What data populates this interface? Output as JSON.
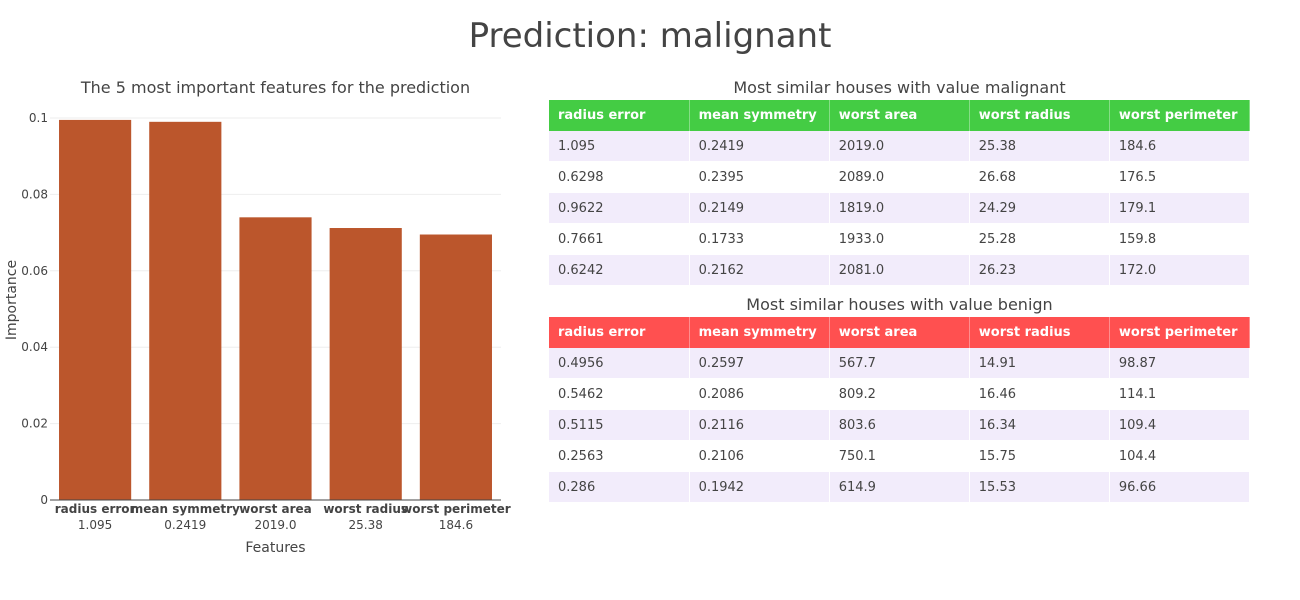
{
  "title": "Prediction: malignant",
  "chart_data": {
    "type": "bar",
    "title": "The 5 most important features for the prediction",
    "xlabel": "Features",
    "ylabel": "Importance",
    "categories": [
      "radius error",
      "mean symmetry",
      "worst area",
      "worst radius",
      "worst perimeter"
    ],
    "category_values": [
      "1.095",
      "0.2419",
      "2019.0",
      "25.38",
      "184.6"
    ],
    "values": [
      0.0995,
      0.099,
      0.074,
      0.0712,
      0.0695
    ],
    "ylim": [
      0,
      0.1
    ],
    "yticks": [
      0,
      0.02,
      0.04,
      0.06,
      0.08,
      0.1
    ],
    "ytick_labels": [
      "0",
      "0.02",
      "0.04",
      "0.06",
      "0.08",
      "0.1"
    ],
    "bar_color": "#bb562c",
    "grid": true
  },
  "tables": [
    {
      "title": "Most similar houses with value malignant",
      "header_color": "#44cc44",
      "columns": [
        "radius error",
        "mean symmetry",
        "worst area",
        "worst radius",
        "worst perimeter"
      ],
      "rows": [
        [
          "1.095",
          "0.2419",
          "2019.0",
          "25.38",
          "184.6"
        ],
        [
          "0.6298",
          "0.2395",
          "2089.0",
          "26.68",
          "176.5"
        ],
        [
          "0.9622",
          "0.2149",
          "1819.0",
          "24.29",
          "179.1"
        ],
        [
          "0.7661",
          "0.1733",
          "1933.0",
          "25.28",
          "159.8"
        ],
        [
          "0.6242",
          "0.2162",
          "2081.0",
          "26.23",
          "172.0"
        ]
      ]
    },
    {
      "title": "Most similar houses with value benign",
      "header_color": "#ff5050",
      "columns": [
        "radius error",
        "mean symmetry",
        "worst area",
        "worst radius",
        "worst perimeter"
      ],
      "rows": [
        [
          "0.4956",
          "0.2597",
          "567.7",
          "14.91",
          "98.87"
        ],
        [
          "0.5462",
          "0.2086",
          "809.2",
          "16.46",
          "114.1"
        ],
        [
          "0.5115",
          "0.2116",
          "803.6",
          "16.34",
          "109.4"
        ],
        [
          "0.2563",
          "0.2106",
          "750.1",
          "15.75",
          "104.4"
        ],
        [
          "0.286",
          "0.1942",
          "614.9",
          "15.53",
          "96.66"
        ]
      ]
    }
  ]
}
